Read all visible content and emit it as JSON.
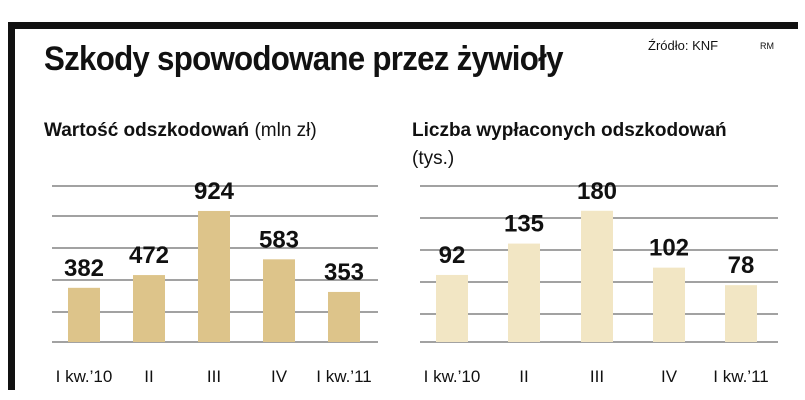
{
  "header": {
    "title": "Szkody spowodowane przez żywioły",
    "source": "Źródło: KNF",
    "credit": "RM"
  },
  "colors": {
    "left_bar": "#ddc48a",
    "right_bar": "#f2e6c4",
    "grid": "#444444",
    "frame": "#111111"
  },
  "chart_data": [
    {
      "type": "bar",
      "title": "Wartość odszkodowań",
      "unit": "(mln zł)",
      "categories": [
        "I kw.’10",
        "II",
        "III",
        "IV",
        "I kw.’11"
      ],
      "values": [
        382,
        472,
        924,
        583,
        353
      ],
      "ylim": [
        0,
        1100
      ],
      "grid": true
    },
    {
      "type": "bar",
      "title": "Liczba wypłaconych odszkodowań",
      "unit": "(tys.)",
      "categories": [
        "I kw.’10",
        "II",
        "III",
        "IV",
        "I kw.’11"
      ],
      "values": [
        92,
        135,
        180,
        102,
        78
      ],
      "ylim": [
        0,
        214
      ],
      "grid": true
    }
  ]
}
